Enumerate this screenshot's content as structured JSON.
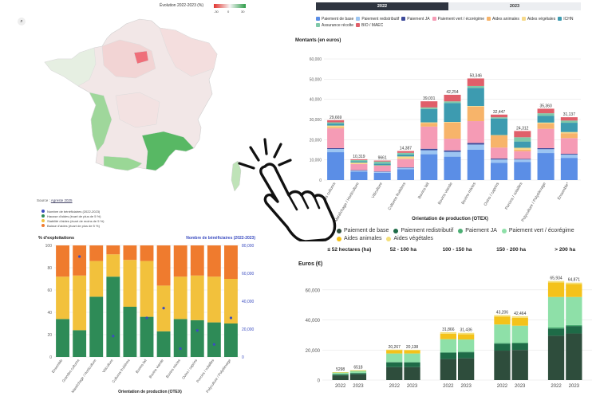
{
  "map": {
    "title": "Évolution 2022-2023 (%)",
    "scale_labels": [
      "-30",
      "0",
      "30"
    ],
    "zoom_icon": "search-icon",
    "source_label": "Source :",
    "source_link": "Agreste 2025"
  },
  "legend_mid": {
    "items": [
      {
        "label": "Nombre de bénéficiaires (2022-2023)",
        "color": "#3b4cc0"
      },
      {
        "label": "Hausse d'aides (écart de plus de 5 %)",
        "color": "#2e8b57"
      },
      {
        "label": "Stabilité d'aides (écart de moins de 5 %)",
        "color": "#f2c13c"
      },
      {
        "label": "Baisse d'aides (écart de plus de 5 %)",
        "color": "#ef7b2e"
      }
    ]
  },
  "tabs": [
    {
      "label": "2022",
      "active": true
    },
    {
      "label": "2023",
      "active": false
    }
  ],
  "legend_top": {
    "items": [
      {
        "label": "Paiement de base",
        "color": "#5b8ee6"
      },
      {
        "label": "Paiement redistributif",
        "color": "#9cc5f2"
      },
      {
        "label": "Paiement JA",
        "color": "#3d4a9a"
      },
      {
        "label": "Paiement vert / écorégime",
        "color": "#f59bb5"
      },
      {
        "label": "Aides animales",
        "color": "#f7b46a"
      },
      {
        "label": "Aides végétales",
        "color": "#f6d98a"
      },
      {
        "label": "ICHN",
        "color": "#3d9bb0"
      },
      {
        "label": "Assurance récolte",
        "color": "#7fc8a9"
      },
      {
        "label": "BIO / MAEC",
        "color": "#e05f6a"
      }
    ]
  },
  "legend_bottom": {
    "items": [
      {
        "label": "Paiement de base",
        "color": "#2e4d3c"
      },
      {
        "label": "Paiement redistributif",
        "color": "#1e6b47"
      },
      {
        "label": "Paiement JA",
        "color": "#4caf74"
      },
      {
        "label": "Paiement vert / écorégime",
        "color": "#8ee0a8"
      },
      {
        "label": "Aides animales",
        "color": "#f4c21a"
      },
      {
        "label": "Aides végétales",
        "color": "#f4e07a"
      }
    ]
  },
  "chart_data": [
    {
      "type": "bar",
      "stacked": true,
      "title": "Montants (en euros)",
      "xlabel": "Orientation de production (OTEX)",
      "ylabel": "",
      "ylim": [
        0,
        60000
      ],
      "yticks": [
        0,
        10000,
        20000,
        30000,
        40000,
        50000,
        60000
      ],
      "ytick_labels": [
        "0",
        "10,000",
        "20,000",
        "30,000",
        "40,000",
        "50,000",
        "60,000"
      ],
      "categories": [
        "Grandes cultures",
        "Maraîchage / Horticulture",
        "Viticulture",
        "Cultures fruitières",
        "Bovins lait",
        "Bovins viande",
        "Bovins mixtes",
        "Ovins / caprins",
        "Porcins / volailles",
        "Polyculture / Polyélevage",
        "Ensemble*"
      ],
      "totals": [
        29669,
        10319,
        9661,
        14387,
        39031,
        42254,
        50346,
        32447,
        24312,
        35360,
        31137
      ],
      "total_labels": [
        "29,669",
        "10,319",
        "9661",
        "14,387",
        "39,031",
        "42,254",
        "50,346",
        "32,447",
        "24,312",
        "35,360",
        "31,137"
      ],
      "series": [
        {
          "name": "Paiement de base",
          "values": [
            13800,
            4200,
            3600,
            5400,
            12800,
            11600,
            15000,
            8600,
            9000,
            13400,
            11000
          ]
        },
        {
          "name": "Paiement redistributif",
          "values": [
            1600,
            500,
            500,
            700,
            2000,
            2400,
            2600,
            1600,
            1200,
            1900,
            1600
          ]
        },
        {
          "name": "Paiement JA",
          "values": [
            400,
            200,
            200,
            200,
            700,
            700,
            800,
            500,
            300,
            500,
            400
          ]
        },
        {
          "name": "Paiement vert / écorégime",
          "values": [
            9800,
            3000,
            2800,
            4200,
            11000,
            5800,
            10800,
            5400,
            3800,
            9600,
            7800
          ]
        },
        {
          "name": "Aides animales",
          "values": [
            600,
            100,
            0,
            0,
            1800,
            8000,
            7200,
            6000,
            800,
            2600,
            2400
          ]
        },
        {
          "name": "Aides végétales",
          "values": [
            800,
            700,
            200,
            1200,
            300,
            300,
            300,
            200,
            900,
            500,
            600
          ]
        },
        {
          "name": "ICHN",
          "values": [
            1000,
            600,
            900,
            1000,
            6600,
            9400,
            9000,
            8200,
            3100,
            3400,
            4600
          ]
        },
        {
          "name": "Assurance récolte",
          "values": [
            600,
            600,
            1000,
            800,
            800,
            800,
            900,
            600,
            2100,
            1200,
            1100
          ]
        },
        {
          "name": "BIO / MAEC",
          "values": [
            1069,
            419,
            461,
            887,
            3031,
            3254,
            3746,
            1347,
            3112,
            2260,
            1637
          ]
        }
      ]
    },
    {
      "type": "bar",
      "stacked": true,
      "title": "% d'exploitations",
      "secondary_title": "Nombre de bénéficiaires (2022-2023)",
      "xlabel": "Orientation de production (OTEX)",
      "ylim": [
        0,
        100
      ],
      "yticks": [
        0,
        20,
        40,
        60,
        80,
        100
      ],
      "y2lim": [
        0,
        80000
      ],
      "y2ticks": [
        0,
        20000,
        40000,
        60000,
        80000
      ],
      "y2tick_labels": [
        "0",
        "20,000",
        "40,000",
        "60,000",
        "80,000"
      ],
      "categories": [
        "Ensemble",
        "Grandes cultures",
        "Maraîchage / Horticulture",
        "Viticulture",
        "Cultures fruitières",
        "Bovins lait",
        "Bovins viande",
        "Bovins mixtes",
        "Ovins / caprins",
        "Porcins / volailles",
        "Polyculture / Polyélevage"
      ],
      "series": [
        {
          "name": "Hausse d'aides (écart de plus de 5 %)",
          "values": [
            34,
            24,
            54,
            72,
            45,
            36,
            23,
            34,
            33,
            31,
            30
          ]
        },
        {
          "name": "Stabilité d'aides (écart de moins de 5 %)",
          "values": [
            38,
            49,
            32,
            20,
            42,
            50,
            41,
            38,
            40,
            41,
            40
          ]
        },
        {
          "name": "Baisse d'aides (écart de plus de 5 %)",
          "values": [
            28,
            27,
            14,
            8,
            13,
            14,
            36,
            28,
            27,
            28,
            30
          ]
        }
      ],
      "line": {
        "name": "Nombre de bénéficiaires (2022-2023)",
        "values": [
          null,
          72000,
          null,
          15000,
          null,
          28000,
          35000,
          6000,
          19000,
          9000,
          28000
        ]
      }
    },
    {
      "type": "bar",
      "stacked": true,
      "title": "Euros (€)",
      "ylim": [
        0,
        70000
      ],
      "yticks": [
        0,
        20000,
        40000,
        60000
      ],
      "ytick_labels": [
        "0",
        "20,000",
        "40,000",
        "60,000"
      ],
      "groups": [
        "≤ 52 hectares (ha)",
        "52 - 100 ha",
        "100 - 150 ha",
        "150 - 200 ha",
        "> 200 ha"
      ],
      "years": [
        "2022",
        "2023"
      ],
      "totals": [
        5298,
        6518,
        20267,
        20138,
        31866,
        31436,
        43206,
        42464,
        65934,
        64871
      ],
      "total_labels": [
        "5298",
        "6518",
        "20,267",
        "20,138",
        "31,866",
        "31,436",
        "43,206",
        "42,464",
        "65,934",
        "64,871"
      ],
      "series": [
        {
          "name": "Paiement de base",
          "values": [
            3100,
            3800,
            8600,
            8600,
            14000,
            14500,
            19600,
            20000,
            29500,
            31000
          ]
        },
        {
          "name": "Paiement redistributif",
          "values": [
            700,
            800,
            3200,
            3100,
            4200,
            4000,
            4600,
            4400,
            4800,
            5000
          ]
        },
        {
          "name": "Paiement JA",
          "values": [
            100,
            150,
            300,
            300,
            400,
            400,
            500,
            500,
            700,
            700
          ]
        },
        {
          "name": "Paiement vert / écorégime",
          "values": [
            1100,
            1350,
            5600,
            5700,
            8600,
            8100,
            12300,
            11300,
            20300,
            18600
          ]
        },
        {
          "name": "Aides animales",
          "values": [
            248,
            318,
            2267,
            2138,
            3666,
            3436,
            5206,
            5264,
            9634,
            8571
          ]
        },
        {
          "name": "Aides végétales",
          "values": [
            50,
            100,
            300,
            300,
            1000,
            1000,
            1000,
            1000,
            1000,
            1000
          ]
        }
      ]
    }
  ]
}
